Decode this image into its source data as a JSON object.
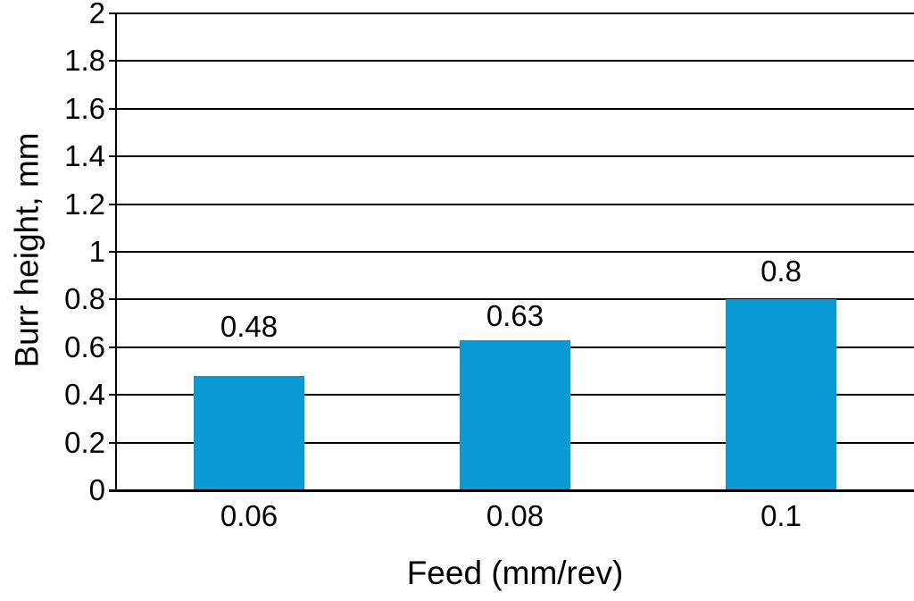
{
  "chart_data": {
    "type": "bar",
    "title": "",
    "categories": [
      "0.06",
      "0.08",
      "0.1"
    ],
    "values": [
      0.48,
      0.63,
      0.8
    ],
    "data_labels": [
      "0.48",
      "0.63",
      "0.8"
    ],
    "xlabel": "Feed (mm/rev)",
    "ylabel": "Burr height, mm",
    "ylim": [
      0,
      2
    ],
    "ytick_step": 0.2,
    "ytick_labels": [
      "0",
      "0.2",
      "0.4",
      "0.6",
      "0.8",
      "1",
      "1.2",
      "1.4",
      "1.6",
      "1.8",
      "2"
    ],
    "grid": true,
    "legend": false,
    "colors": {
      "bar": "#0b99d3",
      "axis": "#000000",
      "text": "#000000",
      "background": "#ffffff"
    }
  }
}
